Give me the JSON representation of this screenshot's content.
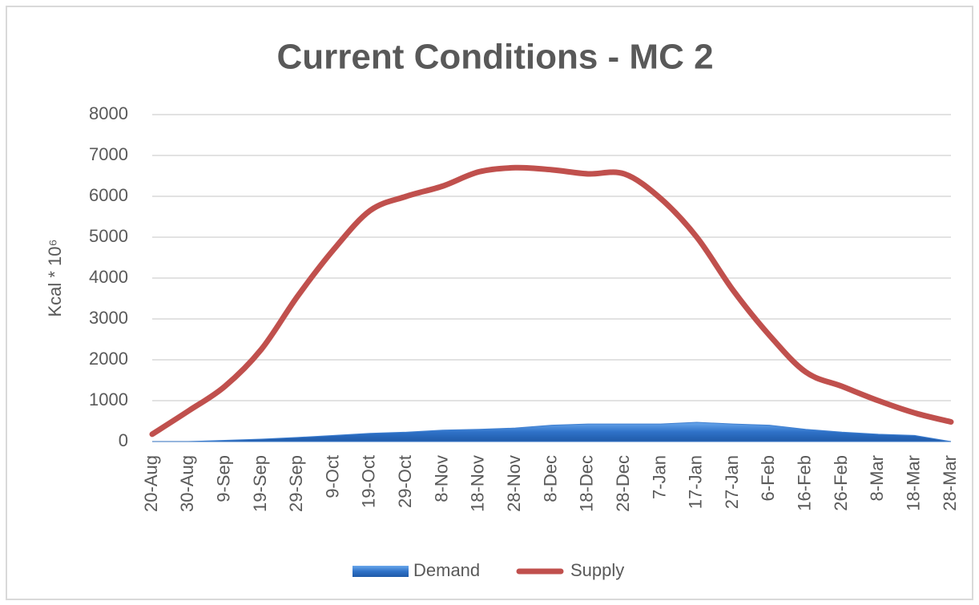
{
  "chart_data": {
    "type": "combo",
    "title": "Current Conditions - MC 2",
    "y_label": "Kcal * 10⁶",
    "categories": [
      "20-Aug",
      "30-Aug",
      "9-Sep",
      "19-Sep",
      "29-Sep",
      "9-Oct",
      "19-Oct",
      "29-Oct",
      "8-Nov",
      "18-Nov",
      "28-Nov",
      "8-Dec",
      "18-Dec",
      "28-Dec",
      "7-Jan",
      "17-Jan",
      "27-Jan",
      "6-Feb",
      "16-Feb",
      "26-Feb",
      "8-Mar",
      "18-Mar",
      "28-Mar"
    ],
    "series": [
      {
        "name": "Demand",
        "type": "area",
        "color": "#3f7fd0",
        "values": [
          0,
          0,
          30,
          60,
          100,
          150,
          200,
          230,
          280,
          300,
          330,
          400,
          430,
          430,
          430,
          470,
          430,
          400,
          300,
          230,
          180,
          150,
          0
        ]
      },
      {
        "name": "Supply",
        "type": "line",
        "color": "#c0504d",
        "values": [
          180,
          750,
          1350,
          2250,
          3550,
          4700,
          5650,
          6000,
          6250,
          6600,
          6700,
          6650,
          6550,
          6550,
          5950,
          5000,
          3700,
          2600,
          1700,
          1350,
          1000,
          700,
          480
        ]
      }
    ],
    "ylim": [
      0,
      8000
    ],
    "yticks": [
      0,
      1000,
      2000,
      3000,
      4000,
      5000,
      6000,
      7000,
      8000
    ],
    "grid": true,
    "legend": "bottom"
  }
}
